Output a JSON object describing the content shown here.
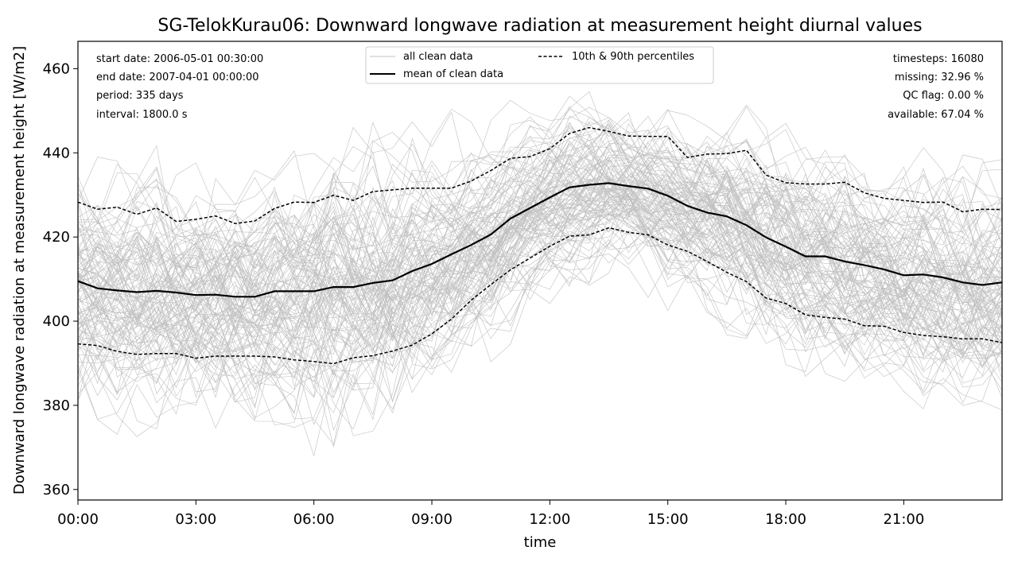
{
  "chart_data": {
    "type": "line",
    "title": "SG-TelokKurau06: Downward longwave radiation at measurement height diurnal values",
    "xlabel": "time",
    "ylabel": "Downward longwave radiation at measurement height [W/m2]",
    "xlim": [
      0,
      23.5
    ],
    "ylim": [
      357.5,
      466.5
    ],
    "x_ticks": [
      0,
      3,
      6,
      9,
      12,
      15,
      18,
      21
    ],
    "x_tick_labels": [
      "00:00",
      "03:00",
      "06:00",
      "09:00",
      "12:00",
      "15:00",
      "18:00",
      "21:00"
    ],
    "y_ticks": [
      360,
      380,
      400,
      420,
      440,
      460
    ],
    "y_tick_labels": [
      "360",
      "380",
      "400",
      "420",
      "440",
      "460"
    ],
    "grid": false,
    "legend_position": "top-center",
    "legend": {
      "all_clean": "all clean data",
      "mean": "mean of clean data",
      "percentiles": "10th & 90th percentiles"
    },
    "info_left": [
      "start date: 2006-05-01 00:30:00",
      "end date: 2007-04-01 00:00:00",
      "period: 335 days",
      "interval: 1800.0 s"
    ],
    "info_right": [
      "timesteps: 16080",
      "missing: 32.96 %",
      "QC flag: 0.00 %",
      "available: 67.04 %"
    ],
    "x": [
      0,
      0.5,
      1,
      1.5,
      2,
      2.5,
      3,
      3.5,
      4,
      4.5,
      5,
      5.5,
      6,
      6.5,
      7,
      7.5,
      8,
      8.5,
      9,
      9.5,
      10,
      10.5,
      11,
      11.5,
      12,
      12.5,
      13,
      13.5,
      14,
      14.5,
      15,
      15.5,
      16,
      16.5,
      17,
      17.5,
      18,
      18.5,
      19,
      19.5,
      20,
      20.5,
      21,
      21.5,
      22,
      22.5,
      23,
      23.5
    ],
    "series": [
      {
        "name": "mean of clean data",
        "color": "#000000",
        "style": "solid",
        "values": [
          409.5,
          407.8,
          407.3,
          406.9,
          407.2,
          406.8,
          406.2,
          406.3,
          405.8,
          405.8,
          407.1,
          407.1,
          407.1,
          408.1,
          408.1,
          409.1,
          409.7,
          411.9,
          413.6,
          415.9,
          418.1,
          420.6,
          424.4,
          426.9,
          429.4,
          431.8,
          432.4,
          432.8,
          432.1,
          431.5,
          429.8,
          427.4,
          425.8,
          424.9,
          422.8,
          419.9,
          417.7,
          415.4,
          415.4,
          414.2,
          413.3,
          412.3,
          410.9,
          411.1,
          410.4,
          409.2,
          408.6,
          409.2
        ]
      },
      {
        "name": "90th percentile",
        "color": "#000000",
        "style": "dashed",
        "values": [
          428.3,
          426.6,
          427.1,
          425.4,
          426.9,
          423.7,
          424.2,
          425.0,
          423.2,
          423.8,
          426.8,
          428.3,
          428.2,
          429.9,
          428.7,
          430.8,
          431.2,
          431.6,
          431.6,
          431.6,
          433.3,
          435.8,
          438.7,
          439.1,
          441.0,
          444.6,
          446.0,
          445.1,
          444.0,
          443.9,
          443.9,
          438.9,
          439.7,
          439.8,
          440.6,
          434.7,
          432.9,
          432.6,
          432.6,
          433.0,
          430.5,
          429.2,
          428.7,
          428.2,
          428.3,
          426.0,
          426.6,
          426.5
        ]
      },
      {
        "name": "10th percentile",
        "color": "#000000",
        "style": "dashed",
        "values": [
          394.6,
          394.2,
          392.8,
          392.1,
          392.3,
          392.3,
          391.2,
          391.7,
          391.7,
          391.7,
          391.5,
          390.8,
          390.4,
          389.9,
          391.3,
          391.8,
          392.9,
          394.3,
          397.0,
          400.5,
          405.0,
          408.7,
          412.2,
          415.0,
          417.8,
          420.2,
          420.5,
          422.2,
          421.1,
          420.5,
          418.1,
          416.6,
          414.2,
          411.6,
          409.4,
          405.5,
          404.2,
          401.5,
          400.9,
          400.5,
          398.9,
          398.8,
          397.3,
          396.6,
          396.3,
          395.8,
          395.8,
          394.9
        ]
      }
    ],
    "background_series_color": "#c0c0c0",
    "background_series_count": 120
  }
}
